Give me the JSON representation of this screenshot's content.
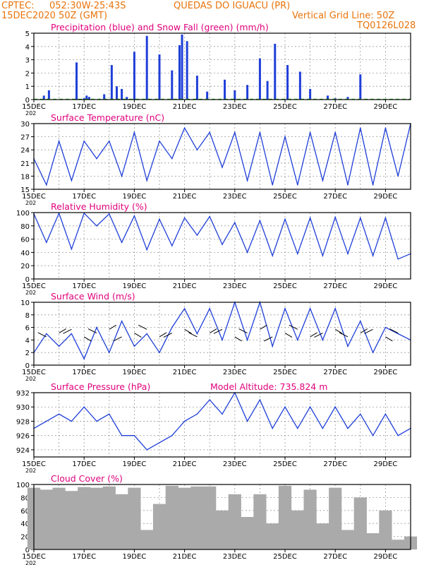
{
  "header": {
    "source": "CPTEC:",
    "coords": "052:30W-25:43S",
    "station": "QUEDAS DO IGUACU (PR)",
    "datetime": "15DEC2020 50Z (GMT)",
    "gridline": "Vertical Grid Line: 50Z",
    "code": "TQ0126L028"
  },
  "x_ticks": [
    "15DEC",
    "17DEC",
    "19DEC",
    "21DEC",
    "23DEC",
    "25DEC",
    "27DEC",
    "29DEC"
  ],
  "under_tick": "202",
  "colors": {
    "accent": "#e8740c",
    "title": "#e0007c",
    "line": "#1f3fd8",
    "bar_blue": "#1f3fd8",
    "snow": "#00b000",
    "cloud": "#aaaaaa"
  },
  "chart_data": [
    {
      "type": "bar",
      "title": "Precipitation (blue) and Snow Fall (green) (mm/h)",
      "ylim": [
        0,
        5
      ],
      "yticks": [
        "0",
        "1",
        "2",
        "3",
        "4",
        "5"
      ],
      "series": [
        {
          "name": "Precipitation",
          "x": [
            0.4,
            0.6,
            1.7,
            2.0,
            2.1,
            2.2,
            2.8,
            3.1,
            3.3,
            3.5,
            3.7,
            4.0,
            4.5,
            5.0,
            5.5,
            5.8,
            5.9,
            6.1,
            6.5,
            6.9,
            7.6,
            8.0,
            8.5,
            9.0,
            9.3,
            9.6,
            10.1,
            10.6,
            11.0,
            11.7,
            12.0,
            12.5,
            13.0
          ],
          "values": [
            0.3,
            0.7,
            2.8,
            0.1,
            0.3,
            0.2,
            0.4,
            2.6,
            1.0,
            0.8,
            0.2,
            3.6,
            4.8,
            3.4,
            2.2,
            4.1,
            4.9,
            4.4,
            1.8,
            0.6,
            1.5,
            0.7,
            1.1,
            3.1,
            1.4,
            4.2,
            2.6,
            2.1,
            0.8,
            0.3,
            0.1,
            0.2,
            1.9
          ]
        },
        {
          "name": "Snow Fall",
          "x": [],
          "values": []
        }
      ]
    },
    {
      "type": "line",
      "title": "Surface Temperature (nC)",
      "ylim": [
        15,
        30
      ],
      "yticks": [
        "15",
        "18",
        "21",
        "24",
        "27",
        "30"
      ],
      "x": [
        0,
        0.5,
        1,
        1.5,
        2,
        2.5,
        3,
        3.5,
        4,
        4.5,
        5,
        5.5,
        6,
        6.5,
        7,
        7.5,
        8,
        8.5,
        9,
        9.5,
        10,
        10.5,
        11,
        11.5,
        12,
        12.5,
        13,
        13.5,
        14,
        14.5,
        15
      ],
      "values": [
        22,
        16,
        26,
        17,
        26,
        22,
        26,
        18,
        28,
        17,
        26,
        22,
        29,
        24,
        28,
        20,
        28,
        17,
        28,
        16,
        27,
        16,
        28,
        17,
        28,
        16,
        29,
        16,
        29,
        18,
        30
      ]
    },
    {
      "type": "line",
      "title": "Relative Humidity (%)",
      "ylim": [
        0,
        100
      ],
      "yticks": [
        "0",
        "20",
        "40",
        "60",
        "80",
        "100"
      ],
      "x": [
        0,
        0.5,
        1,
        1.5,
        2,
        2.5,
        3,
        3.5,
        4,
        4.5,
        5,
        5.5,
        6,
        6.5,
        7,
        7.5,
        8,
        8.5,
        9,
        9.5,
        10,
        10.5,
        11,
        11.5,
        12,
        12.5,
        13,
        13.5,
        14,
        14.5,
        15
      ],
      "values": [
        98,
        55,
        99,
        45,
        99,
        80,
        98,
        55,
        95,
        44,
        90,
        50,
        92,
        66,
        94,
        52,
        85,
        40,
        88,
        35,
        90,
        38,
        92,
        35,
        93,
        38,
        92,
        35,
        92,
        30,
        38
      ]
    },
    {
      "type": "line",
      "title": "Surface Wind (m/s)",
      "ylim": [
        0,
        10
      ],
      "yticks": [
        "0",
        "2",
        "4",
        "6",
        "8",
        "10"
      ],
      "x": [
        0,
        0.5,
        1,
        1.5,
        2,
        2.5,
        3,
        3.5,
        4,
        4.5,
        5,
        5.5,
        6,
        6.5,
        7,
        7.5,
        8,
        8.5,
        9,
        9.5,
        10,
        10.5,
        11,
        11.5,
        12,
        12.5,
        13,
        13.5,
        14,
        14.5,
        15
      ],
      "values": [
        2,
        5,
        3,
        5,
        1,
        6,
        2,
        7,
        3,
        5,
        2,
        6,
        9,
        5,
        9,
        4,
        10,
        4,
        10,
        3,
        9,
        4,
        9,
        4,
        9,
        3,
        7,
        2,
        6,
        5,
        4
      ]
    },
    {
      "type": "line",
      "title": "Surface Pressure (hPa)",
      "annotation": "Model Altitude: 735.824  m",
      "ylim": [
        923,
        932
      ],
      "yticks": [
        "924",
        "926",
        "928",
        "930",
        "932"
      ],
      "x": [
        0,
        0.5,
        1,
        1.5,
        2,
        2.5,
        3,
        3.5,
        4,
        4.5,
        5,
        5.5,
        6,
        6.5,
        7,
        7.5,
        8,
        8.5,
        9,
        9.5,
        10,
        10.5,
        11,
        11.5,
        12,
        12.5,
        13,
        13.5,
        14,
        14.5,
        15
      ],
      "values": [
        927,
        928,
        929,
        928,
        930,
        928,
        929,
        926,
        926,
        924,
        925,
        926,
        928,
        929,
        931,
        929,
        932,
        928,
        931,
        927,
        930,
        927,
        930,
        927,
        930,
        927,
        929,
        926,
        929,
        926,
        927
      ]
    },
    {
      "type": "bar",
      "title": "Cloud Cover (%)",
      "ylim": [
        0,
        100
      ],
      "yticks": [
        "0",
        "20",
        "40",
        "60",
        "80",
        "100"
      ],
      "x": [
        0,
        0.5,
        1,
        1.5,
        2,
        2.5,
        3,
        3.5,
        4,
        4.5,
        5,
        5.5,
        6,
        6.5,
        7,
        7.5,
        8,
        8.5,
        9,
        9.5,
        10,
        10.5,
        11,
        11.5,
        12,
        12.5,
        13,
        13.5,
        14,
        14.5,
        15
      ],
      "values": [
        95,
        92,
        95,
        90,
        96,
        95,
        97,
        85,
        95,
        30,
        70,
        98,
        95,
        97,
        97,
        60,
        85,
        50,
        85,
        40,
        98,
        60,
        92,
        40,
        95,
        30,
        80,
        25,
        60,
        15,
        20
      ]
    }
  ]
}
